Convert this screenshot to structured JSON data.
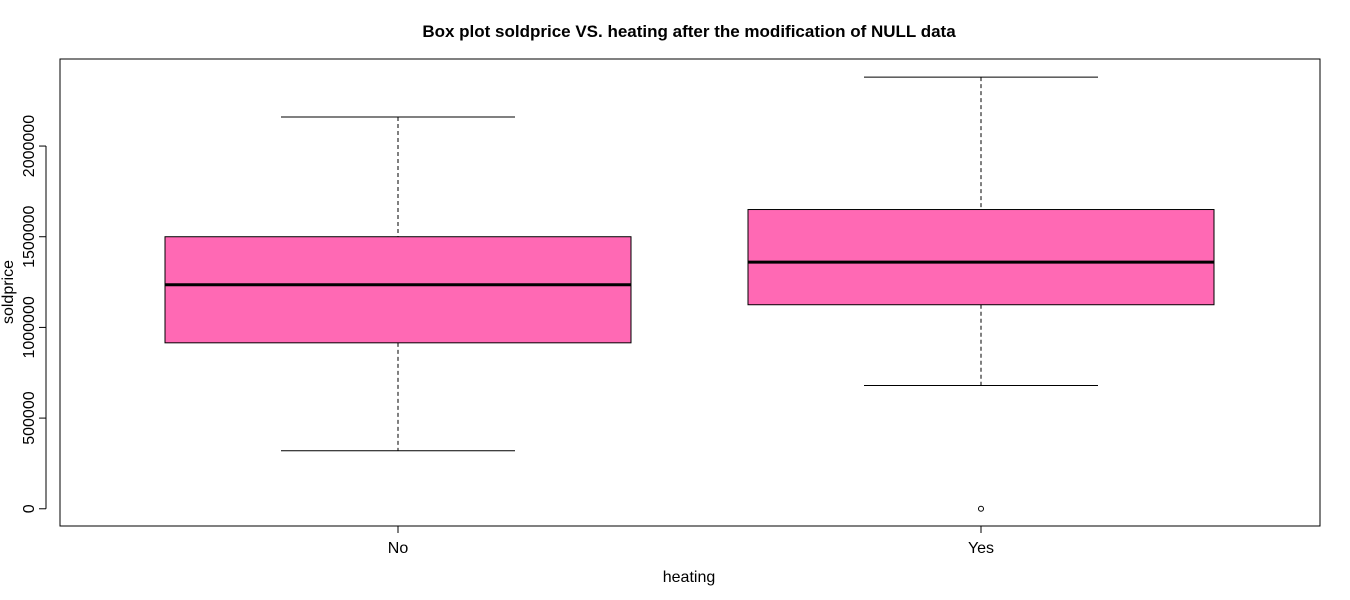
{
  "chart_data": {
    "type": "box",
    "title": "Box plot soldprice VS. heating after the modification of NULL data",
    "xlabel": "heating",
    "ylabel": "soldprice",
    "categories": [
      "No",
      "Yes"
    ],
    "boxes": [
      {
        "category": "No",
        "whisker_low": 320000,
        "q1": 915000,
        "median": 1235000,
        "q3": 1500000,
        "whisker_high": 2160000,
        "outliers": []
      },
      {
        "category": "Yes",
        "whisker_low": 680000,
        "q1": 1125000,
        "median": 1360000,
        "q3": 1650000,
        "whisker_high": 2380000,
        "outliers": [
          0
        ]
      }
    ],
    "yticks": [
      0,
      500000,
      1000000,
      1500000,
      2000000
    ],
    "ytick_labels": [
      "0",
      "500000",
      "1000000",
      "1500000",
      "2000000"
    ],
    "ylim": [
      -95000,
      2480000
    ],
    "box_color": "#ff69b4",
    "grid": false
  }
}
